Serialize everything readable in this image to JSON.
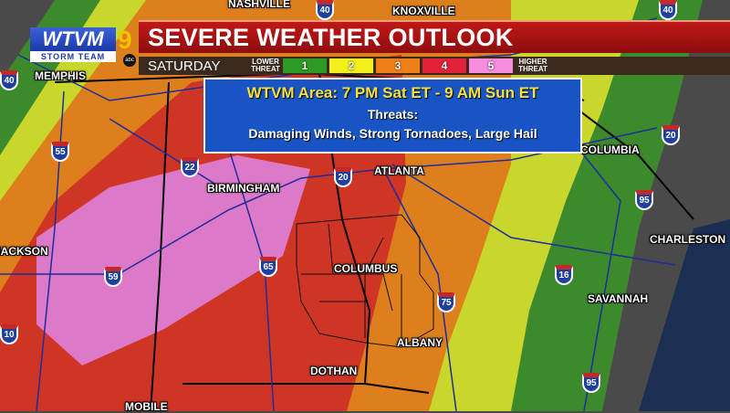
{
  "header": {
    "title": "SEVERE WEATHER OUTLOOK",
    "day": "SATURDAY",
    "lower_label": "LOWER THREAT",
    "higher_label": "HIGHER THREAT"
  },
  "legend": {
    "levels": [
      {
        "label": "1",
        "color": "#2e9a26"
      },
      {
        "label": "2",
        "color": "#f4f01c"
      },
      {
        "label": "3",
        "color": "#f07f1a"
      },
      {
        "label": "4",
        "color": "#e3213a"
      },
      {
        "label": "5",
        "color": "#f58ce0"
      }
    ]
  },
  "logo": {
    "name": "WTVM",
    "sub": "STORM TEAM",
    "channel": "9",
    "network": "abc"
  },
  "info": {
    "line1": "WTVM Area: 7 PM Sat ET - 9 AM Sun ET",
    "line2": "Threats:",
    "line3": "Damaging Winds, Strong Tornadoes, Large Hail"
  },
  "cities": {
    "nashville": "NASHVILLE",
    "knoxville": "KNOXVILLE",
    "memphis": "MEMPHIS",
    "birmingham": "BIRMINGHAM",
    "atlanta": "ATLANTA",
    "columbia": "COLUMBIA",
    "charleston": "CHARLESTON",
    "jackson": "JACKSON",
    "columbus": "COLUMBUS",
    "savannah": "SAVANNAH",
    "albany": "ALBANY",
    "dothan": "DOTHAN",
    "mobile": "MOBILE"
  },
  "interstates": [
    "40",
    "40",
    "40",
    "55",
    "22",
    "20",
    "20",
    "59",
    "65",
    "16",
    "75",
    "95",
    "95",
    "10"
  ],
  "risk_colors": {
    "gray": "#4a4a4a",
    "green": "#3c8a2c",
    "yellow": "#c9d62c",
    "orange": "#dd7f1c",
    "red": "#cf3524",
    "pink": "#dc79c9",
    "ocean": "#1b2f52"
  }
}
